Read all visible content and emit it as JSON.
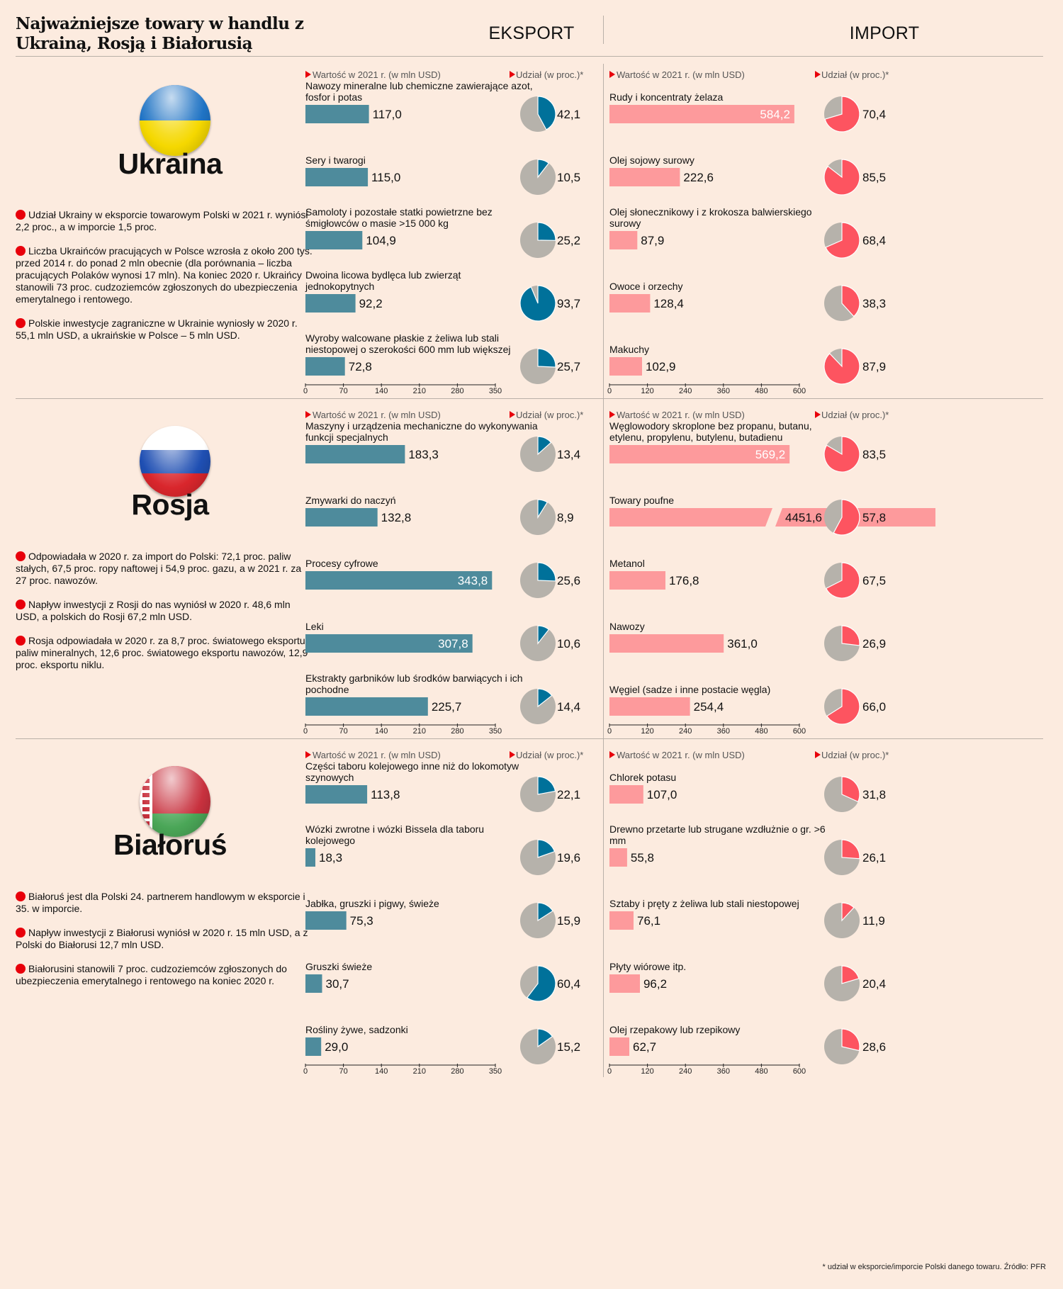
{
  "title": "Najważniejsze towary w handlu z Ukrainą, Rosją i Białorusią",
  "headers": {
    "export": "EKSPORT",
    "import": "IMPORT"
  },
  "labels": {
    "value": "Wartość w 2021 r. (w mln USD)",
    "share": "Udział (w proc.)*"
  },
  "footnote": "* udział w eksporcie/imporcie Polski danego towaru. Źródło: PFR",
  "colors": {
    "export_bar": "#4e8b9c",
    "import_bar": "#fd9a9c",
    "export_pie": "#00719a",
    "import_pie": "#fd5460",
    "pie_rest": "#b6b2ab",
    "bullet": "#e8000b"
  },
  "countries": [
    {
      "name": "Ukraina",
      "flag_colors": [
        "#1f73c4",
        "#f5d800"
      ],
      "flag-icon": "ukraine-flag-icon",
      "notes": [
        "Udział Ukrainy w eksporcie towarowym Polski w 2021 r. wyniósł 2,2 proc., a w imporcie 1,5 proc.",
        "Liczba Ukraińców pracujących w Polsce wzrosła z około 200 tys. przed 2014 r. do ponad 2 mln obecnie (dla porównania – liczba pracujących Polaków wynosi 17 mln). Na koniec 2020 r. Ukraińcy stanowili 73 proc. cudzoziemców zgłoszonych do ubezpieczenia emerytalnego i rentowego.",
        "Polskie inwestycje zagraniczne w Ukrainie wyniosły w 2020 r. 55,1 mln USD, a ukraińskie w Polsce – 5 mln USD."
      ]
    },
    {
      "name": "Rosja",
      "flag_colors": [
        "#ffffff",
        "#1f4fb3",
        "#d9262c"
      ],
      "notes": [
        "Odpowiadała w 2020 r. za import do Polski: 72,1 proc. paliw stałych, 67,5 proc. ropy naftowej i 54,9 proc. gazu, a w 2021 r. za 27 proc. nawozów.",
        "Napływ inwestycji z Rosji do nas wyniósł w 2020 r. 48,6 mln USD, a polskich do Rosji 67,2 mln USD.",
        "Rosja odpowiadała w 2020 r. za 8,7 proc. światowego eksportu paliw mineralnych, 12,6 proc. światowego eksportu nawozów, 12,9 proc. eksportu niklu."
      ]
    },
    {
      "name": "Białoruś",
      "flag_colors": [
        "#c8313e",
        "#4aa657",
        "#ffffff"
      ],
      "notes": [
        "Białoruś jest dla Polski 24. partnerem handlowym w eksporcie i 35. w imporcie.",
        "Napływ inwestycji z Białorusi wyniósł w 2020 r. 15 mln USD, a z Polski do Białorusi 12,7 mln USD.",
        "Białorusini stanowili 7 proc. cudzoziemców zgłoszonych do ubezpieczenia emerytalnego i rentowego na koniec 2020 r."
      ]
    }
  ],
  "chart_data": [
    {
      "type": "bar",
      "title": "Ukraina – EKSPORT",
      "xlabel": "Wartość w 2021 r. (w mln USD)",
      "xlim": [
        0,
        350
      ],
      "ticks": [
        0,
        70,
        140,
        210,
        280,
        350
      ],
      "categories": [
        "Nawozy mineralne lub chemiczne zawierające azot, fosfor i potas",
        "Sery i twarogi",
        "Samoloty i pozostałe statki powietrzne bez śmigłowców o masie >15 000 kg",
        "Dwoina licowa bydlęca lub zwierząt jednokopytnych",
        "Wyroby walcowane płaskie z żeliwa lub stali niestopowej o szerokości 600 mm lub większej"
      ],
      "values": [
        117.0,
        115.0,
        104.9,
        92.2,
        72.8
      ],
      "value_labels": [
        "117,0",
        "115,0",
        "104,9",
        "92,2",
        "72,8"
      ],
      "shares": [
        42.1,
        10.5,
        25.2,
        93.7,
        25.7
      ],
      "share_labels": [
        "42,1",
        "10,5",
        "25,2",
        "93,7",
        "25,7"
      ]
    },
    {
      "type": "bar",
      "title": "Ukraina – IMPORT",
      "xlabel": "Wartość w 2021 r. (w mln USD)",
      "xlim": [
        0,
        600
      ],
      "ticks": [
        0,
        120,
        240,
        360,
        480,
        600
      ],
      "categories": [
        "Rudy i koncentraty żelaza",
        "Olej sojowy surowy",
        "Olej słonecznikowy i z krokosza balwierskiego surowy",
        "Owoce i orzechy",
        "Makuchy"
      ],
      "values": [
        584.2,
        222.6,
        87.9,
        128.4,
        102.9
      ],
      "value_labels": [
        "584,2",
        "222,6",
        "87,9",
        "128,4",
        "102,9"
      ],
      "shares": [
        70.4,
        85.5,
        68.4,
        38.3,
        87.9
      ],
      "share_labels": [
        "70,4",
        "85,5",
        "68,4",
        "38,3",
        "87,9"
      ]
    },
    {
      "type": "bar",
      "title": "Rosja – EKSPORT",
      "xlabel": "Wartość w 2021 r. (w mln USD)",
      "xlim": [
        0,
        350
      ],
      "ticks": [
        0,
        70,
        140,
        210,
        280,
        350
      ],
      "categories": [
        "Maszyny i urządzenia mechaniczne do wykonywania funkcji specjalnych",
        "Zmywarki do naczyń",
        "Procesy cyfrowe",
        "Leki",
        "Ekstrakty garbników lub środków barwiących i ich pochodne"
      ],
      "values": [
        183.3,
        132.8,
        343.8,
        307.8,
        225.7
      ],
      "value_labels": [
        "183,3",
        "132,8",
        "343,8",
        "307,8",
        "225,7"
      ],
      "shares": [
        13.4,
        8.9,
        25.6,
        10.6,
        14.4
      ],
      "share_labels": [
        "13,4",
        "8,9",
        "25,6",
        "10,6",
        "14,4"
      ]
    },
    {
      "type": "bar",
      "title": "Rosja – IMPORT",
      "xlabel": "Wartość w 2021 r. (w mln USD)",
      "xlim": [
        0,
        600
      ],
      "ticks": [
        0,
        120,
        240,
        360,
        480,
        600
      ],
      "categories": [
        "Węglowodory skroplone bez propanu, butanu, etylenu, propylenu, butylenu, butadienu",
        "Towary poufne",
        "Metanol",
        "Nawozy",
        "Węgiel (sadze i inne postacie węgla)"
      ],
      "values": [
        569.2,
        4451.6,
        176.8,
        361.0,
        254.4
      ],
      "value_labels": [
        "569,2",
        "4451,6",
        "176,8",
        "361,0",
        "254,4"
      ],
      "shares": [
        83.5,
        57.8,
        67.5,
        26.9,
        66.0
      ],
      "share_labels": [
        "83,5",
        "57,8",
        "67,5",
        "26,9",
        "66,0"
      ]
    },
    {
      "type": "bar",
      "title": "Białoruś – EKSPORT",
      "xlabel": "Wartość w 2021 r. (w mln USD)",
      "xlim": [
        0,
        350
      ],
      "ticks": [
        0,
        70,
        140,
        210,
        280,
        350
      ],
      "categories": [
        "Części taboru kolejowego inne niż do lokomotyw szynowych",
        "Wózki zwrotne i wózki Bissela dla taboru kolejowego",
        "Jabłka, gruszki i pigwy, świeże",
        "Gruszki świeże",
        "Rośliny żywe, sadzonki"
      ],
      "values": [
        113.8,
        18.3,
        75.3,
        30.7,
        29.0
      ],
      "value_labels": [
        "113,8",
        "18,3",
        "75,3",
        "30,7",
        "29,0"
      ],
      "shares": [
        22.1,
        19.6,
        15.9,
        60.4,
        15.2
      ],
      "share_labels": [
        "22,1",
        "19,6",
        "15,9",
        "60,4",
        "15,2"
      ]
    },
    {
      "type": "bar",
      "title": "Białoruś – IMPORT",
      "xlabel": "Wartość w 2021 r. (w mln USD)",
      "xlim": [
        0,
        600
      ],
      "ticks": [
        0,
        120,
        240,
        360,
        480,
        600
      ],
      "categories": [
        "Chlorek potasu",
        "Drewno przetarte lub strugane wzdłużnie o gr. >6 mm",
        "Sztaby i pręty z żeliwa lub stali niestopowej",
        "Płyty wiórowe itp.",
        "Olej rzepakowy lub rzepikowy"
      ],
      "values": [
        107.0,
        55.8,
        76.1,
        96.2,
        62.7
      ],
      "value_labels": [
        "107,0",
        "55,8",
        "76,1",
        "96,2",
        "62,7"
      ],
      "shares": [
        31.8,
        26.1,
        11.9,
        20.4,
        28.6
      ],
      "share_labels": [
        "31,8",
        "26,1",
        "11,9",
        "20,4",
        "28,6"
      ]
    }
  ]
}
